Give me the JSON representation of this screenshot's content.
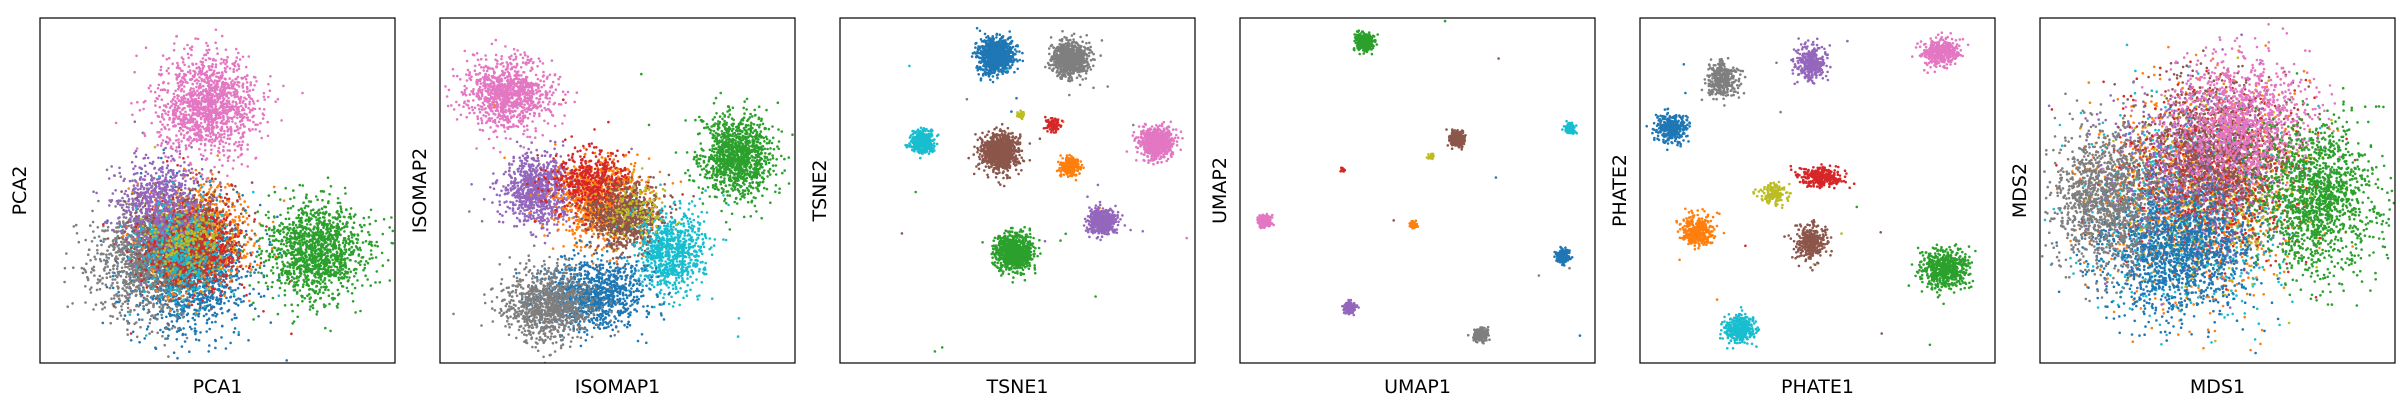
{
  "chart_data": [
    {
      "type": "scatter",
      "xlabel": "PCA1",
      "ylabel": "PCA2",
      "xlim": [
        0,
        1
      ],
      "ylim": [
        0,
        1
      ],
      "ticks": "none",
      "series": [
        {
          "color": "#1f77b4",
          "center": [
            0.42,
            0.28
          ],
          "spread": [
            0.08,
            0.09
          ],
          "n": 1600
        },
        {
          "color": "#7f7f7f",
          "center": [
            0.29,
            0.3
          ],
          "spread": [
            0.07,
            0.08
          ],
          "n": 1200
        },
        {
          "color": "#ff7f0e",
          "center": [
            0.45,
            0.37
          ],
          "spread": [
            0.07,
            0.07
          ],
          "n": 900
        },
        {
          "color": "#8c564b",
          "center": [
            0.41,
            0.36
          ],
          "spread": [
            0.07,
            0.07
          ],
          "n": 900
        },
        {
          "color": "#d62728",
          "center": [
            0.44,
            0.35
          ],
          "spread": [
            0.07,
            0.07
          ],
          "n": 600
        },
        {
          "color": "#9467bd",
          "center": [
            0.34,
            0.46
          ],
          "spread": [
            0.06,
            0.07
          ],
          "n": 700
        },
        {
          "color": "#17becf",
          "center": [
            0.4,
            0.33
          ],
          "spread": [
            0.06,
            0.07
          ],
          "n": 400
        },
        {
          "color": "#bcbd22",
          "center": [
            0.42,
            0.35
          ],
          "spread": [
            0.05,
            0.05
          ],
          "n": 200
        },
        {
          "color": "#e377c2",
          "center": [
            0.47,
            0.75
          ],
          "spread": [
            0.07,
            0.07
          ],
          "n": 1300
        },
        {
          "color": "#2ca02c",
          "center": [
            0.78,
            0.32
          ],
          "spread": [
            0.07,
            0.07
          ],
          "n": 1300
        }
      ]
    },
    {
      "type": "scatter",
      "xlabel": "ISOMAP1",
      "ylabel": "ISOMAP2",
      "xlim": [
        0,
        1
      ],
      "ylim": [
        0,
        1
      ],
      "ticks": "none",
      "series": [
        {
          "color": "#e377c2",
          "center": [
            0.19,
            0.78
          ],
          "spread": [
            0.06,
            0.05
          ],
          "n": 1000
        },
        {
          "color": "#2ca02c",
          "center": [
            0.84,
            0.6
          ],
          "spread": [
            0.05,
            0.06
          ],
          "n": 1200
        },
        {
          "color": "#9467bd",
          "center": [
            0.27,
            0.5
          ],
          "spread": [
            0.05,
            0.05
          ],
          "n": 900
        },
        {
          "color": "#ff7f0e",
          "center": [
            0.45,
            0.47
          ],
          "spread": [
            0.06,
            0.06
          ],
          "n": 900
        },
        {
          "color": "#d62728",
          "center": [
            0.43,
            0.52
          ],
          "spread": [
            0.06,
            0.05
          ],
          "n": 500
        },
        {
          "color": "#8c564b",
          "center": [
            0.52,
            0.42
          ],
          "spread": [
            0.05,
            0.05
          ],
          "n": 800
        },
        {
          "color": "#17becf",
          "center": [
            0.65,
            0.32
          ],
          "spread": [
            0.05,
            0.06
          ],
          "n": 800
        },
        {
          "color": "#1f77b4",
          "center": [
            0.44,
            0.2
          ],
          "spread": [
            0.07,
            0.05
          ],
          "n": 1000
        },
        {
          "color": "#7f7f7f",
          "center": [
            0.3,
            0.17
          ],
          "spread": [
            0.06,
            0.05
          ],
          "n": 1000
        },
        {
          "color": "#bcbd22",
          "center": [
            0.55,
            0.45
          ],
          "spread": [
            0.04,
            0.04
          ],
          "n": 120
        }
      ]
    },
    {
      "type": "scatter",
      "xlabel": "TSNE1",
      "ylabel": "TSNE2",
      "xlim": [
        0,
        1
      ],
      "ylim": [
        0,
        1
      ],
      "ticks": "none",
      "series": [
        {
          "color": "#1f77b4",
          "center": [
            0.44,
            0.89
          ],
          "spread": [
            0.025,
            0.025
          ],
          "n": 900
        },
        {
          "color": "#7f7f7f",
          "center": [
            0.65,
            0.88
          ],
          "spread": [
            0.025,
            0.025
          ],
          "n": 900
        },
        {
          "color": "#17becf",
          "center": [
            0.23,
            0.64
          ],
          "spread": [
            0.016,
            0.016
          ],
          "n": 400
        },
        {
          "color": "#8c564b",
          "center": [
            0.45,
            0.61
          ],
          "spread": [
            0.026,
            0.026
          ],
          "n": 900
        },
        {
          "color": "#e377c2",
          "center": [
            0.89,
            0.64
          ],
          "spread": [
            0.022,
            0.022
          ],
          "n": 800
        },
        {
          "color": "#ff7f0e",
          "center": [
            0.65,
            0.57
          ],
          "spread": [
            0.013,
            0.013
          ],
          "n": 250
        },
        {
          "color": "#d62728",
          "center": [
            0.6,
            0.69
          ],
          "spread": [
            0.009,
            0.009
          ],
          "n": 120
        },
        {
          "color": "#bcbd22",
          "center": [
            0.51,
            0.72
          ],
          "spread": [
            0.005,
            0.005
          ],
          "n": 40
        },
        {
          "color": "#9467bd",
          "center": [
            0.74,
            0.41
          ],
          "spread": [
            0.019,
            0.019
          ],
          "n": 500
        },
        {
          "color": "#2ca02c",
          "center": [
            0.49,
            0.32
          ],
          "spread": [
            0.026,
            0.026
          ],
          "n": 900
        }
      ]
    },
    {
      "type": "scatter",
      "xlabel": "UMAP1",
      "ylabel": "UMAP2",
      "xlim": [
        0,
        1
      ],
      "ylim": [
        0,
        1
      ],
      "ticks": "none",
      "series": [
        {
          "color": "#2ca02c",
          "center": [
            0.35,
            0.93
          ],
          "spread": [
            0.012,
            0.012
          ],
          "n": 400
        },
        {
          "color": "#17becf",
          "center": [
            0.93,
            0.68
          ],
          "spread": [
            0.007,
            0.007
          ],
          "n": 150
        },
        {
          "color": "#8c564b",
          "center": [
            0.61,
            0.65
          ],
          "spread": [
            0.011,
            0.011
          ],
          "n": 250
        },
        {
          "color": "#d62728",
          "center": [
            0.29,
            0.56
          ],
          "spread": [
            0.003,
            0.003
          ],
          "n": 30
        },
        {
          "color": "#bcbd22",
          "center": [
            0.54,
            0.6
          ],
          "spread": [
            0.004,
            0.004
          ],
          "n": 30
        },
        {
          "color": "#e377c2",
          "center": [
            0.07,
            0.41
          ],
          "spread": [
            0.009,
            0.009
          ],
          "n": 200
        },
        {
          "color": "#ff7f0e",
          "center": [
            0.49,
            0.4
          ],
          "spread": [
            0.005,
            0.005
          ],
          "n": 60
        },
        {
          "color": "#1f77b4",
          "center": [
            0.91,
            0.31
          ],
          "spread": [
            0.01,
            0.01
          ],
          "n": 200
        },
        {
          "color": "#9467bd",
          "center": [
            0.31,
            0.16
          ],
          "spread": [
            0.009,
            0.009
          ],
          "n": 150
        },
        {
          "color": "#7f7f7f",
          "center": [
            0.68,
            0.08
          ],
          "spread": [
            0.01,
            0.01
          ],
          "n": 200
        }
      ]
    },
    {
      "type": "scatter",
      "xlabel": "PHATE1",
      "ylabel": "PHATE2",
      "xlim": [
        0,
        1
      ],
      "ylim": [
        0,
        1
      ],
      "ticks": "none",
      "series": [
        {
          "color": "#e377c2",
          "center": [
            0.85,
            0.9
          ],
          "spread": [
            0.025,
            0.02
          ],
          "n": 400
        },
        {
          "color": "#9467bd",
          "center": [
            0.48,
            0.87
          ],
          "spread": [
            0.02,
            0.025
          ],
          "n": 350
        },
        {
          "color": "#7f7f7f",
          "center": [
            0.23,
            0.82
          ],
          "spread": [
            0.022,
            0.025
          ],
          "n": 350
        },
        {
          "color": "#1f77b4",
          "center": [
            0.09,
            0.68
          ],
          "spread": [
            0.022,
            0.022
          ],
          "n": 350
        },
        {
          "color": "#d62728",
          "center": [
            0.51,
            0.54
          ],
          "spread": [
            0.03,
            0.014
          ],
          "n": 300
        },
        {
          "color": "#bcbd22",
          "center": [
            0.38,
            0.49
          ],
          "spread": [
            0.018,
            0.014
          ],
          "n": 150
        },
        {
          "color": "#ff7f0e",
          "center": [
            0.16,
            0.38
          ],
          "spread": [
            0.022,
            0.022
          ],
          "n": 350
        },
        {
          "color": "#8c564b",
          "center": [
            0.48,
            0.35
          ],
          "spread": [
            0.022,
            0.025
          ],
          "n": 350
        },
        {
          "color": "#2ca02c",
          "center": [
            0.86,
            0.27
          ],
          "spread": [
            0.035,
            0.028
          ],
          "n": 600
        },
        {
          "color": "#17becf",
          "center": [
            0.28,
            0.1
          ],
          "spread": [
            0.022,
            0.02
          ],
          "n": 350
        }
      ]
    },
    {
      "type": "scatter",
      "xlabel": "MDS1",
      "ylabel": "MDS2",
      "xlim": [
        0,
        1
      ],
      "ylim": [
        0,
        1
      ],
      "ticks": "none",
      "series": [
        {
          "color": "#ff7f0e",
          "center": [
            0.45,
            0.5
          ],
          "spread": [
            0.14,
            0.15
          ],
          "n": 1200
        },
        {
          "color": "#17becf",
          "center": [
            0.42,
            0.45
          ],
          "spread": [
            0.13,
            0.14
          ],
          "n": 900
        },
        {
          "color": "#bcbd22",
          "center": [
            0.48,
            0.5
          ],
          "spread": [
            0.12,
            0.13
          ],
          "n": 500
        },
        {
          "color": "#d62728",
          "center": [
            0.48,
            0.55
          ],
          "spread": [
            0.12,
            0.12
          ],
          "n": 900
        },
        {
          "color": "#9467bd",
          "center": [
            0.43,
            0.55
          ],
          "spread": [
            0.12,
            0.12
          ],
          "n": 900
        },
        {
          "color": "#8c564b",
          "center": [
            0.5,
            0.62
          ],
          "spread": [
            0.11,
            0.1
          ],
          "n": 900
        },
        {
          "color": "#1f77b4",
          "center": [
            0.38,
            0.32
          ],
          "spread": [
            0.11,
            0.09
          ],
          "n": 1400
        },
        {
          "color": "#7f7f7f",
          "center": [
            0.18,
            0.48
          ],
          "spread": [
            0.07,
            0.1
          ],
          "n": 1200
        },
        {
          "color": "#e377c2",
          "center": [
            0.56,
            0.7
          ],
          "spread": [
            0.1,
            0.09
          ],
          "n": 1200
        },
        {
          "color": "#2ca02c",
          "center": [
            0.78,
            0.48
          ],
          "spread": [
            0.08,
            0.11
          ],
          "n": 1400
        }
      ]
    }
  ]
}
